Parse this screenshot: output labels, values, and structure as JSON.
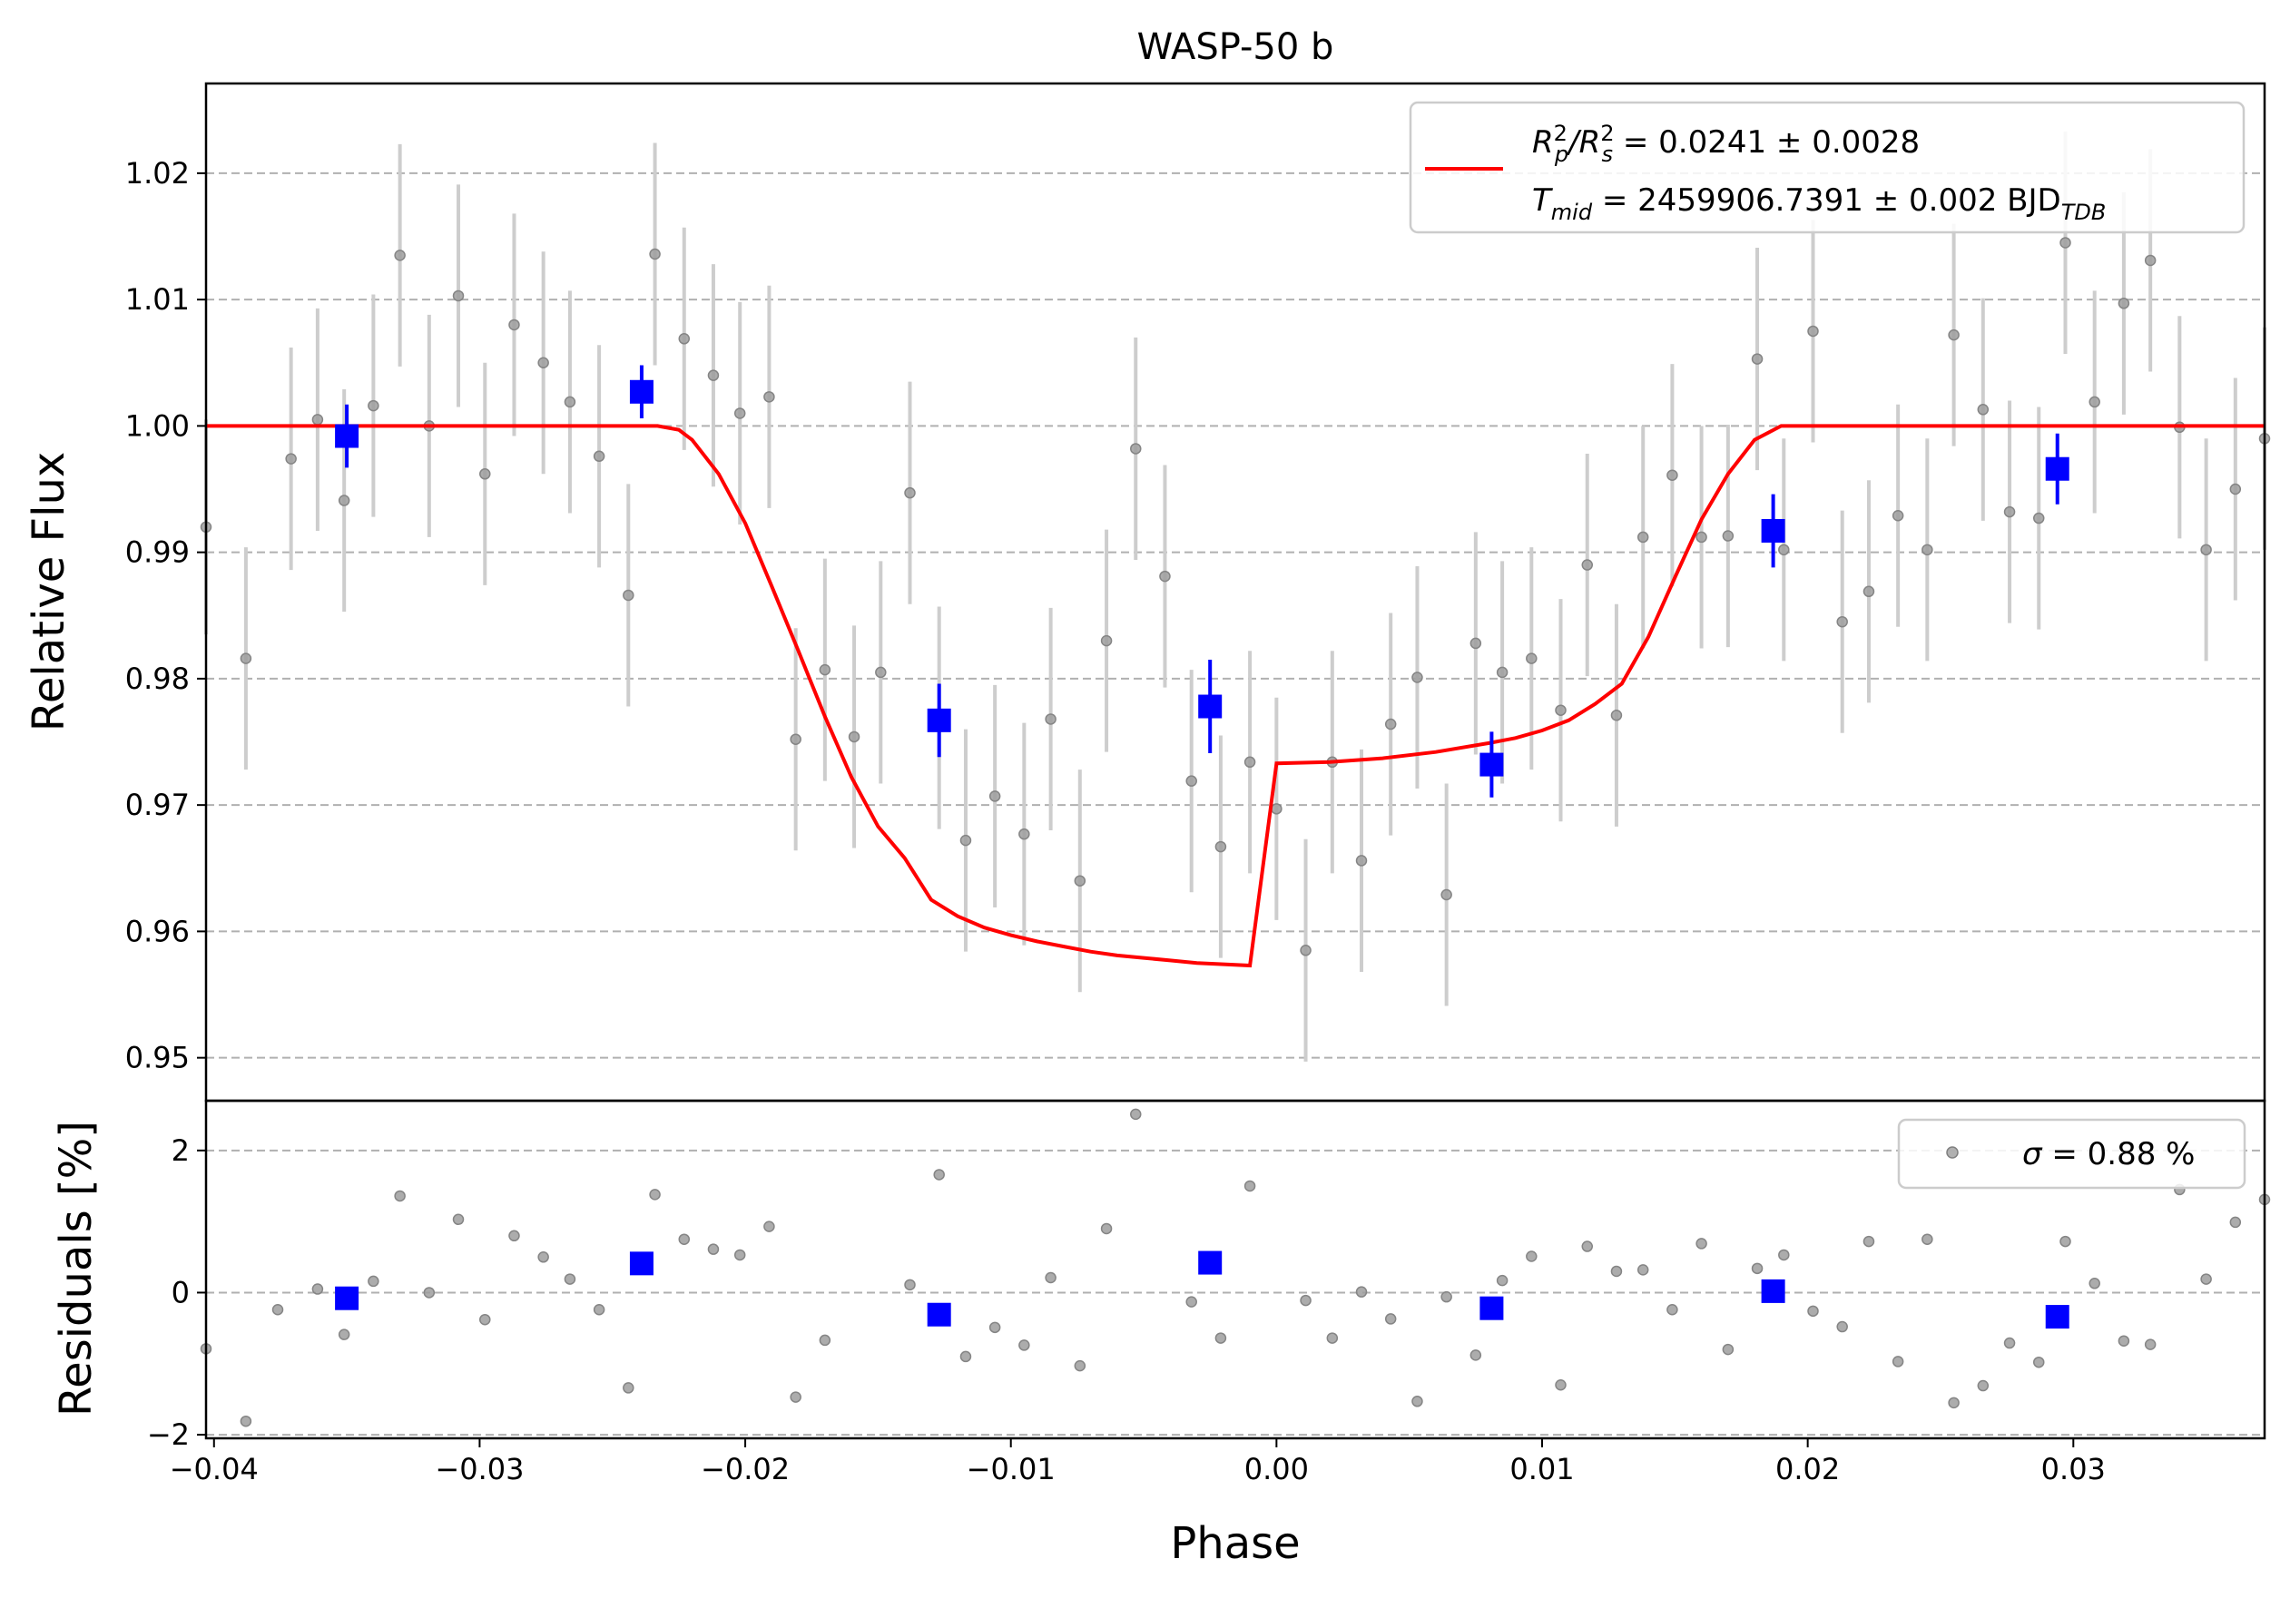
{
  "chart_data": [
    {
      "type": "scatter",
      "panel": "main",
      "title": "WASP-50 b",
      "ylabel": "Relative Flux",
      "xlim": [
        -0.0403,
        0.0372
      ],
      "ylim": [
        0.9466,
        1.0271
      ],
      "yticks": [
        0.95,
        0.96,
        0.97,
        0.98,
        0.99,
        1.0,
        1.01,
        1.02
      ],
      "ytick_labels": [
        "0.95",
        "0.96",
        "0.97",
        "0.98",
        "0.99",
        "1.00",
        "1.01",
        "1.02"
      ],
      "grid": "horizontal-dashed",
      "legend_position": "top-right",
      "legend": {
        "line1_parts": [
          "R",
          "2",
          "p",
          "/R",
          "2",
          "s",
          " = 0.0241 ± 0.0028"
        ],
        "line2_parts": [
          "T",
          "mid",
          " = 2459906.7391 ± 0.002 BJD",
          "TDB"
        ]
      },
      "colors": {
        "raw": "#9e9e9e",
        "raw_err": "#cdcdcd",
        "binned": "#0000ff",
        "model": "#ff0000"
      },
      "model": {
        "name": "transit model",
        "x": [
          -0.0403,
          -0.0233,
          -0.0225,
          -0.022,
          -0.021,
          -0.02,
          -0.019,
          -0.018,
          -0.017,
          -0.016,
          -0.015,
          -0.014,
          -0.013,
          -0.012,
          -0.011,
          -0.01,
          -0.009,
          -0.008,
          -0.007,
          -0.006,
          -0.005,
          -0.004,
          -0.003,
          -0.002,
          -0.001,
          0.0,
          0.002,
          0.004,
          0.006,
          0.008,
          0.009,
          0.01,
          0.011,
          0.012,
          0.013,
          0.014,
          0.015,
          0.016,
          0.017,
          0.018,
          0.019,
          0.02,
          0.021,
          0.022,
          0.0227,
          0.0233,
          0.0372
        ],
        "y": [
          1.0,
          1.0,
          0.9997,
          0.9989,
          0.9962,
          0.9923,
          0.9873,
          0.9822,
          0.977,
          0.9722,
          0.9683,
          0.9658,
          0.9625,
          0.9612,
          0.9603,
          0.9597,
          0.9592,
          0.9588,
          0.9584,
          0.9581,
          0.9579,
          0.9577,
          0.9575,
          0.9574,
          0.9573,
          0.9733,
          0.9734,
          0.9737,
          0.9742,
          0.9749,
          0.9753,
          0.9759,
          0.9767,
          0.978,
          0.9796,
          0.9833,
          0.988,
          0.9926,
          0.9962,
          0.9989,
          1.0,
          1.0,
          1.0,
          1.0,
          1.0,
          1.0,
          1.0
        ]
      },
      "raw": {
        "x": [
          -0.0403,
          -0.0388,
          -0.0371,
          -0.0361,
          -0.0351,
          -0.034,
          -0.033,
          -0.0319,
          -0.0308,
          -0.0298,
          -0.0287,
          -0.0276,
          -0.0266,
          -0.0255,
          -0.0244,
          -0.0234,
          -0.0223,
          -0.0212,
          -0.0202,
          -0.0191,
          -0.0181,
          -0.017,
          -0.0159,
          -0.0149,
          -0.0138,
          -0.0127,
          -0.0117,
          -0.0106,
          -0.0095,
          -0.0085,
          -0.0074,
          -0.0064,
          -0.0053,
          -0.0042,
          -0.0032,
          -0.0021,
          -0.001,
          0.0,
          0.0011,
          0.0021,
          0.0032,
          0.0043,
          0.0053,
          0.0064,
          0.0075,
          0.0085,
          0.0096,
          0.0107,
          0.0117,
          0.0128,
          0.0138,
          0.0149,
          0.016,
          0.017,
          0.0181,
          0.0191,
          0.0202,
          0.0213,
          0.0223,
          0.0234,
          0.0245,
          0.0255,
          0.0266,
          0.0276,
          0.0287,
          0.0297,
          0.0308,
          0.0319,
          0.0329,
          0.034,
          0.035,
          0.0361,
          0.0372
        ],
        "y": [
          0.992,
          0.9816,
          0.9974,
          1.0005,
          0.9941,
          1.0016,
          1.0135,
          1.0,
          1.0103,
          0.9962,
          1.008,
          1.005,
          1.0019,
          0.9976,
          0.9866,
          1.0136,
          1.0069,
          1.004,
          1.001,
          1.0023,
          0.9752,
          0.9807,
          0.9754,
          0.9805,
          0.9947,
          0.9769,
          0.9672,
          0.9707,
          0.9677,
          0.9768,
          0.964,
          0.983,
          0.9982,
          0.9881,
          0.9719,
          0.9667,
          0.9734,
          0.9697,
          0.9585,
          0.9734,
          0.9656,
          0.9764,
          0.9801,
          0.9629,
          0.9828,
          0.9805,
          0.9816,
          0.9775,
          0.989,
          0.9771,
          0.9912,
          0.9961,
          0.9912,
          0.9913,
          1.0053,
          0.9902,
          1.0075,
          0.9845,
          0.9869,
          0.9929,
          0.9902,
          1.0072,
          1.0013,
          0.9932,
          0.9927,
          1.0145,
          1.0019,
          1.0097,
          1.0131,
          0.9999,
          0.9902,
          0.995,
          0.999
        ],
        "err": [
          0.0085,
          0.0088,
          0.0088,
          0.0088,
          0.0088,
          0.0088,
          0.0088,
          0.0088,
          0.0088,
          0.0088,
          0.0088,
          0.0088,
          0.0088,
          0.0088,
          0.0088,
          0.0088,
          0.0088,
          0.0088,
          0.0088,
          0.0088,
          0.0088,
          0.0088,
          0.0088,
          0.0088,
          0.0088,
          0.0088,
          0.0088,
          0.0088,
          0.0088,
          0.0088,
          0.0088,
          0.0088,
          0.0088,
          0.0088,
          0.0088,
          0.0088,
          0.0088,
          0.0088,
          0.0088,
          0.0088,
          0.0088,
          0.0088,
          0.0088,
          0.0088,
          0.0088,
          0.0088,
          0.0088,
          0.0088,
          0.0088,
          0.0088,
          0.0088,
          0.0088,
          0.0088,
          0.0088,
          0.0088,
          0.0088,
          0.0088,
          0.0088,
          0.0088,
          0.0088,
          0.0088,
          0.0088,
          0.0088,
          0.0088,
          0.0088,
          0.0088,
          0.0088,
          0.0088,
          0.0088,
          0.0088,
          0.0088,
          0.0088,
          0.0088
        ]
      },
      "binned": {
        "x": [
          -0.035,
          -0.0239,
          -0.0127,
          -0.0025,
          0.0081,
          0.0187,
          0.0294
        ],
        "y": [
          0.9992,
          1.0027,
          0.9767,
          0.9778,
          0.9732,
          0.9917,
          0.9966
        ],
        "err": [
          0.0025,
          0.0021,
          0.0029,
          0.0037,
          0.0026,
          0.0029,
          0.0028
        ]
      }
    },
    {
      "type": "scatter",
      "panel": "residuals",
      "xlabel": "Phase",
      "ylabel": "Residuals [%]",
      "xlim": [
        -0.0403,
        0.0372
      ],
      "ylim": [
        -2.05,
        2.7
      ],
      "xticks": [
        -0.04,
        -0.03,
        -0.02,
        -0.01,
        0.0,
        0.01,
        0.02,
        0.03
      ],
      "xtick_labels": [
        "−0.04",
        "−0.03",
        "−0.02",
        "−0.01",
        "0.00",
        "0.01",
        "0.02",
        "0.03"
      ],
      "yticks": [
        -2,
        0,
        2
      ],
      "ytick_labels": [
        "−2",
        "0",
        "2"
      ],
      "grid": "horizontal-dashed",
      "legend_position": "top-right",
      "legend": {
        "sigma_symbol": "σ",
        "sigma_text": " = 0.88 %"
      },
      "raw": {
        "x": [
          -0.0403,
          -0.0388,
          -0.0376,
          -0.0361,
          -0.0351,
          -0.034,
          -0.033,
          -0.0319,
          -0.0308,
          -0.0298,
          -0.0287,
          -0.0276,
          -0.0266,
          -0.0255,
          -0.0244,
          -0.0234,
          -0.0223,
          -0.0212,
          -0.0202,
          -0.0191,
          -0.0181,
          -0.017,
          -0.0138,
          -0.0127,
          -0.0117,
          -0.0106,
          -0.0095,
          -0.0085,
          -0.0074,
          -0.0064,
          -0.0053,
          -0.0032,
          -0.0021,
          -0.001,
          0.0011,
          0.0021,
          0.0032,
          0.0043,
          0.0053,
          0.0064,
          0.0075,
          0.0085,
          0.0096,
          0.0107,
          0.0117,
          0.0128,
          0.0138,
          0.0149,
          0.016,
          0.017,
          0.0181,
          0.0191,
          0.0202,
          0.0213,
          0.0223,
          0.0234,
          0.0245,
          0.0255,
          0.0266,
          0.0276,
          0.0287,
          0.0297,
          0.0308,
          0.0319,
          0.0329,
          0.034,
          0.035,
          0.0361,
          0.0372
        ],
        "y": [
          -0.79,
          -1.81,
          -0.24,
          0.05,
          -0.59,
          0.16,
          1.36,
          0.0,
          1.03,
          -0.38,
          0.8,
          0.5,
          0.19,
          -0.24,
          -1.34,
          1.38,
          0.75,
          0.61,
          0.53,
          0.93,
          -1.47,
          -0.67,
          0.11,
          1.66,
          -0.9,
          -0.49,
          -0.74,
          0.21,
          -1.03,
          0.9,
          2.51,
          -0.13,
          -0.64,
          1.5,
          -0.11,
          -0.64,
          0.01,
          -0.37,
          -1.53,
          -0.06,
          -0.88,
          0.17,
          0.51,
          -1.3,
          0.65,
          0.3,
          0.32,
          -0.24,
          0.69,
          -0.8,
          0.34,
          0.53,
          -0.26,
          -0.48,
          0.72,
          -0.97,
          0.75,
          -1.55,
          -1.31,
          -0.71,
          -0.98,
          0.72,
          0.13,
          -0.68,
          -0.73,
          1.45,
          0.19,
          0.99,
          1.31
        ],
        "name": "σ = 0.88 %"
      },
      "binned": {
        "x": [
          -0.035,
          -0.0239,
          -0.0127,
          -0.0025,
          0.0081,
          0.0187,
          0.0294
        ],
        "y": [
          -0.08,
          0.41,
          -0.31,
          0.42,
          -0.22,
          0.02,
          -0.34
        ]
      }
    }
  ]
}
